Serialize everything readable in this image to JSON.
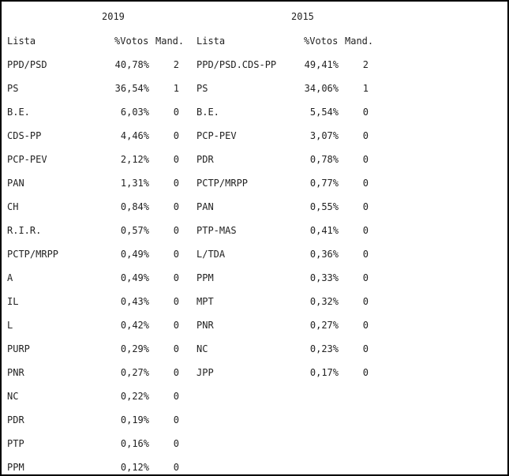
{
  "tables": [
    {
      "year": "2019",
      "headers": {
        "lista": "Lista",
        "votos": "%Votos",
        "mand": "Mand."
      },
      "rows": [
        {
          "lista": "PPD/PSD",
          "votos": "40,78%",
          "mand": "2"
        },
        {
          "lista": "PS",
          "votos": "36,54%",
          "mand": "1"
        },
        {
          "lista": "B.E.",
          "votos": "6,03%",
          "mand": "0"
        },
        {
          "lista": "CDS-PP",
          "votos": "4,46%",
          "mand": "0"
        },
        {
          "lista": "PCP-PEV",
          "votos": "2,12%",
          "mand": "0"
        },
        {
          "lista": "PAN",
          "votos": "1,31%",
          "mand": "0"
        },
        {
          "lista": "CH",
          "votos": "0,84%",
          "mand": "0"
        },
        {
          "lista": "R.I.R.",
          "votos": "0,57%",
          "mand": "0"
        },
        {
          "lista": "PCTP/MRPP",
          "votos": "0,49%",
          "mand": "0"
        },
        {
          "lista": "A",
          "votos": "0,49%",
          "mand": "0"
        },
        {
          "lista": "IL",
          "votos": "0,43%",
          "mand": "0"
        },
        {
          "lista": "L",
          "votos": "0,42%",
          "mand": "0"
        },
        {
          "lista": "PURP",
          "votos": "0,29%",
          "mand": "0"
        },
        {
          "lista": "PNR",
          "votos": "0,27%",
          "mand": "0"
        },
        {
          "lista": "NC",
          "votos": "0,22%",
          "mand": "0"
        },
        {
          "lista": "PDR",
          "votos": "0,19%",
          "mand": "0"
        },
        {
          "lista": "PTP",
          "votos": "0,16%",
          "mand": "0"
        },
        {
          "lista": "PPM",
          "votos": "0,12%",
          "mand": "0"
        }
      ]
    },
    {
      "year": "2015",
      "headers": {
        "lista": "Lista",
        "votos": "%Votos",
        "mand": "Mand."
      },
      "rows": [
        {
          "lista": "PPD/PSD.CDS-PP",
          "votos": "49,41%",
          "mand": "2"
        },
        {
          "lista": "PS",
          "votos": "34,06%",
          "mand": "1"
        },
        {
          "lista": "B.E.",
          "votos": "5,54%",
          "mand": "0"
        },
        {
          "lista": "PCP-PEV",
          "votos": "3,07%",
          "mand": "0"
        },
        {
          "lista": "PDR",
          "votos": "0,78%",
          "mand": "0"
        },
        {
          "lista": "PCTP/MRPP",
          "votos": "0,77%",
          "mand": "0"
        },
        {
          "lista": "PAN",
          "votos": "0,55%",
          "mand": "0"
        },
        {
          "lista": "PTP-MAS",
          "votos": "0,41%",
          "mand": "0"
        },
        {
          "lista": "L/TDA",
          "votos": "0,36%",
          "mand": "0"
        },
        {
          "lista": "PPM",
          "votos": "0,33%",
          "mand": "0"
        },
        {
          "lista": "MPT",
          "votos": "0,32%",
          "mand": "0"
        },
        {
          "lista": "PNR",
          "votos": "0,27%",
          "mand": "0"
        },
        {
          "lista": "NC",
          "votos": "0,23%",
          "mand": "0"
        },
        {
          "lista": "JPP",
          "votos": "0,17%",
          "mand": "0"
        }
      ]
    }
  ]
}
